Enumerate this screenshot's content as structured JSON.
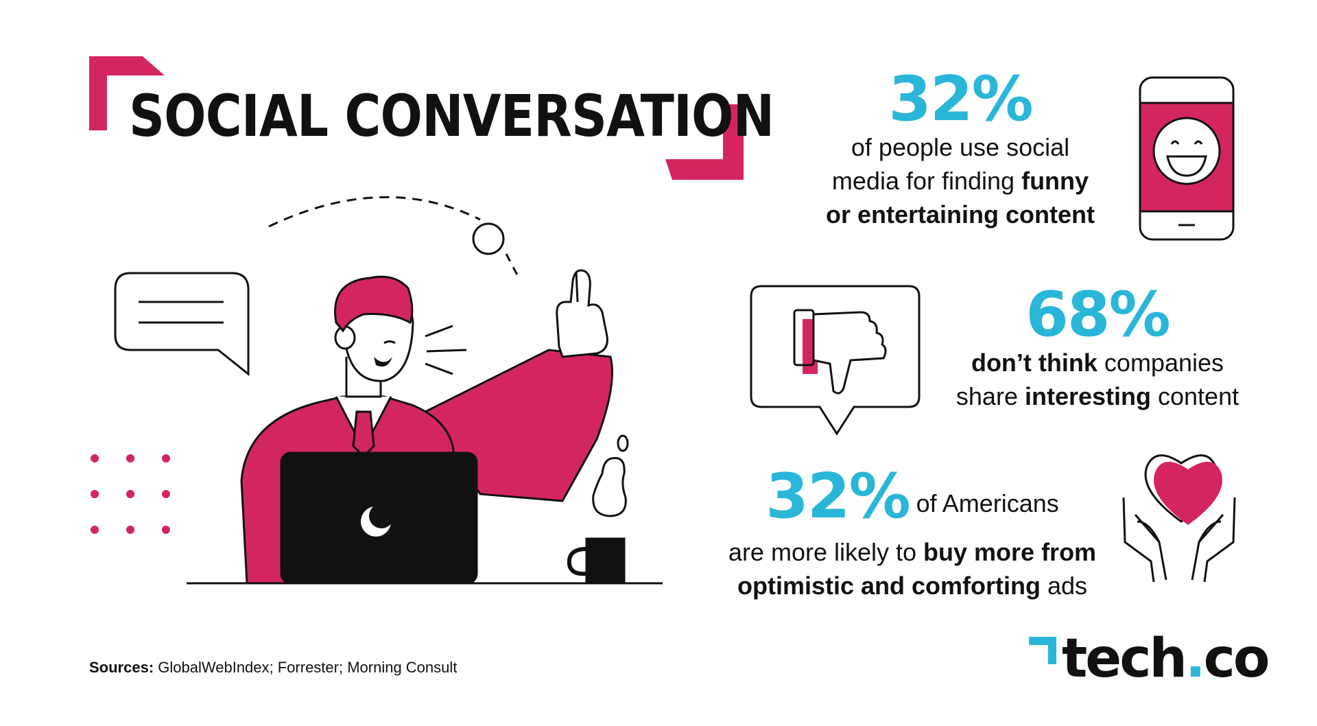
{
  "title": "SOCIAL CONVERSATION",
  "stats": [
    {
      "value": "32%",
      "lines": [
        [
          {
            "t": "of people use social",
            "b": false
          }
        ],
        [
          {
            "t": "media for finding ",
            "b": false
          },
          {
            "t": "funny",
            "b": true
          }
        ],
        [
          {
            "t": "or entertaining content",
            "b": true
          }
        ]
      ]
    },
    {
      "value": "68%",
      "lines": [
        [
          {
            "t": "don’t think",
            "b": true
          },
          {
            "t": " companies",
            "b": false
          }
        ],
        [
          {
            "t": "share ",
            "b": false
          },
          {
            "t": "interesting",
            "b": true
          },
          {
            "t": " content",
            "b": false
          }
        ]
      ]
    },
    {
      "value": "32%",
      "first_line_rest": " of Americans",
      "lines": [
        [
          {
            "t": "are more likely to ",
            "b": false
          },
          {
            "t": "buy more from",
            "b": true
          }
        ],
        [
          {
            "t": "optimistic and comforting",
            "b": true
          },
          {
            "t": " ads",
            "b": false
          }
        ]
      ]
    }
  ],
  "sources_label": "Sources:",
  "sources_text": " GlobalWebIndex; Forrester; Morning Consult",
  "logo": {
    "main": "tech",
    "dot": ".",
    "suffix": "co"
  },
  "colors": {
    "accent": "#d4265e",
    "blue": "#29b6d8",
    "ink": "#111111"
  },
  "icons": [
    "smiling-phone-icon",
    "thumbs-down-bubble-icon",
    "heart-hands-icon",
    "speech-bubble-icon"
  ]
}
